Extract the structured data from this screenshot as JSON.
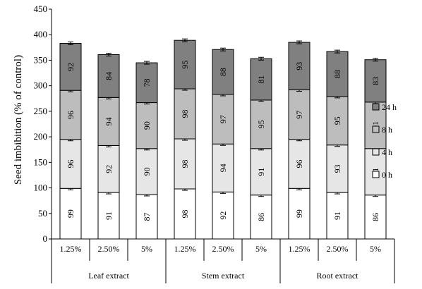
{
  "chart_data": {
    "type": "bar",
    "stacked": true,
    "ylabel": "Seed imbibition (% of control)",
    "ylim": [
      0,
      450
    ],
    "yticks": [
      0,
      50,
      100,
      150,
      200,
      250,
      300,
      350,
      400,
      450
    ],
    "grid": false,
    "legend_position": "right",
    "groups": [
      {
        "label": "Leaf extract",
        "categories": [
          "1.25%",
          "2.50%",
          "5%"
        ]
      },
      {
        "label": "Stem extract",
        "categories": [
          "1.25%",
          "2.50%",
          "5%"
        ]
      },
      {
        "label": "Root extract",
        "categories": [
          "1.25%",
          "2.50%",
          "5%"
        ]
      }
    ],
    "series": [
      {
        "name": "0 h",
        "color": "#ffffff",
        "values": [
          99,
          91,
          87,
          98,
          92,
          86,
          99,
          91,
          86
        ]
      },
      {
        "name": "4 h",
        "color": "#e6e6e6",
        "values": [
          96,
          92,
          90,
          98,
          94,
          91,
          96,
          93,
          91
        ]
      },
      {
        "name": "8 h",
        "color": "#bdbdbd",
        "values": [
          96,
          94,
          90,
          98,
          97,
          95,
          97,
          95,
          91
        ]
      },
      {
        "name": "24 h",
        "color": "#808080",
        "values": [
          92,
          84,
          78,
          95,
          88,
          81,
          93,
          88,
          83
        ]
      }
    ],
    "legend_order": [
      "24 h",
      "8 h",
      "4 h",
      "0 h"
    ]
  }
}
